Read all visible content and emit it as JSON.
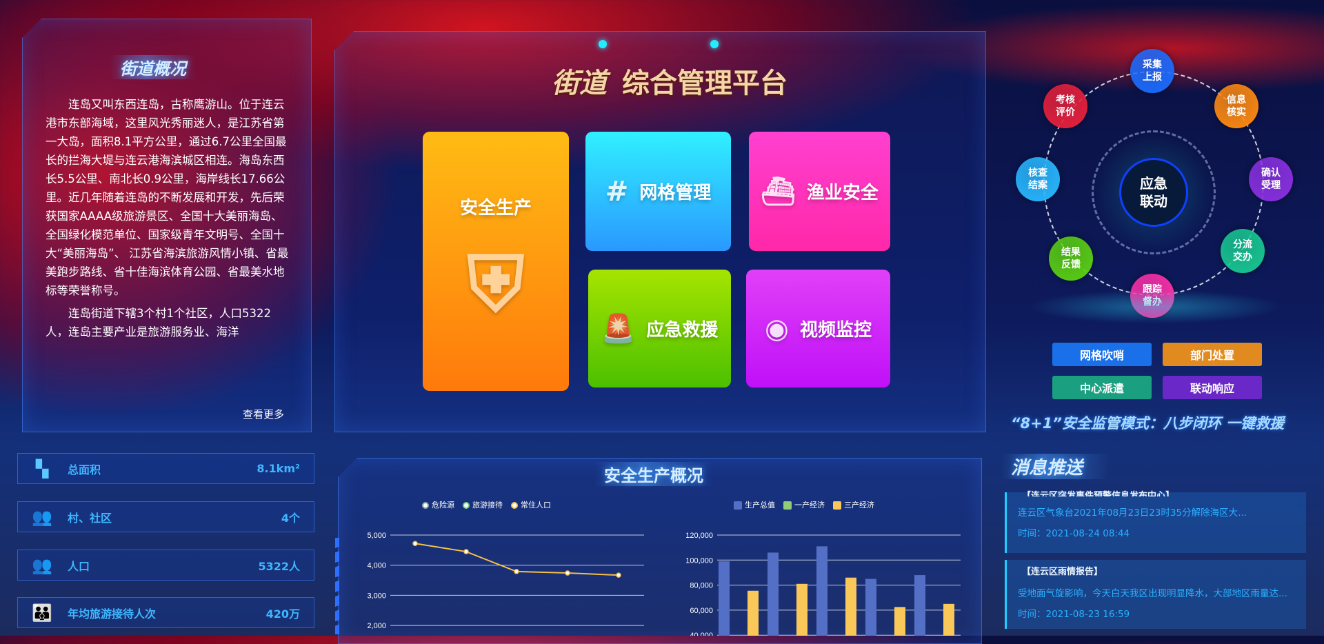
{
  "overview": {
    "title": "街道概况",
    "paragraphs": [
      "连岛又叫东西连岛，古称鹰游山。位于连云港市东部海域，这里风光秀丽迷人，是江苏省第一大岛，面积8.1平方公里，通过6.7公里全国最长的拦海大堤与连云港海滨城区相连。海岛东西长5.5公里、南北长0.9公里，海岸线长17.66公里。近几年随着连岛的不断发展和开发，先后荣获国家AAAA级旅游景区、全国十大美丽海岛、全国绿化模范单位、国家级青年文明号、全国十大“美丽海岛”、 江苏省海滨旅游风情小镇、省最美跑步路线、省十佳海滨体育公园、省最美水地标等荣誉称号。",
      "连岛街道下辖3个村1个社区，人口5322人，连岛主要产业是旅游服务业、海洋"
    ],
    "more": "查看更多"
  },
  "stats": [
    {
      "icon": "area-icon",
      "label": "总面积",
      "value": "8.1km²"
    },
    {
      "icon": "community-icon",
      "label": "村、社区",
      "value": "4个"
    },
    {
      "icon": "population-icon",
      "label": "人口",
      "value": "5322人"
    },
    {
      "icon": "tourists-icon",
      "label": "年均旅游接待人次",
      "value": "420万"
    }
  ],
  "header": {
    "title_prefix": "街道",
    "title": "综合管理平台"
  },
  "tiles": [
    {
      "label": "安全生产",
      "icon": "shield-gear-icon",
      "color": "#ff9a10"
    },
    {
      "label": "网格管理",
      "icon": "grid-icon",
      "color": "#2ab8ff"
    },
    {
      "label": "渔业安全",
      "icon": "fishing-boat-icon",
      "color": "#ff30c0"
    },
    {
      "label": "应急救援",
      "icon": "alarm-light-icon",
      "color": "#7ad400"
    },
    {
      "label": "视频监控",
      "icon": "camera-icon",
      "color": "#d020f8"
    }
  ],
  "cycle": {
    "center": "应急\n联动",
    "nodes": [
      {
        "label": "采集\n上报",
        "color": "#1a6cff"
      },
      {
        "label": "信息\n核实",
        "color": "#ff8a10"
      },
      {
        "label": "确认\n受理",
        "color": "#8a30e0"
      },
      {
        "label": "分流\n交办",
        "color": "#18c890"
      },
      {
        "label": "跟踪\n督办",
        "color": "#ff30a8"
      },
      {
        "label": "结果\n反馈",
        "color": "#5ad010"
      },
      {
        "label": "核查\n结案",
        "color": "#28b8ff"
      },
      {
        "label": "考核\n评价",
        "color": "#e8203a"
      }
    ]
  },
  "modes": [
    {
      "label": "网格吹哨",
      "color": "#1a70e8"
    },
    {
      "label": "部门处置",
      "color": "#e08a20"
    },
    {
      "label": "中心派遣",
      "color": "#1aa080"
    },
    {
      "label": "联动响应",
      "color": "#6a28c8"
    }
  ],
  "slogan": "“8+1”安全监管模式：八步闭环 一键救援",
  "safety": {
    "title": "安全生产概况"
  },
  "chart_data": [
    {
      "type": "line",
      "legend": [
        "危险源",
        "旅游接待",
        "常住人口"
      ],
      "legend_colors": [
        "#ffffff",
        "#7ad07a",
        "#f5c04a"
      ],
      "ylim": [
        2000,
        5000
      ],
      "yticks": [
        "5,000",
        "4,000",
        "3,000",
        "2,000"
      ],
      "series": [
        {
          "name": "常住人口",
          "values": [
            4720,
            4450,
            3790,
            3740,
            3670
          ]
        }
      ],
      "color": "#f5c04a"
    },
    {
      "type": "bar",
      "legend": [
        "生产总值",
        "一产经济",
        "三产经济"
      ],
      "legend_colors": [
        "#5470c6",
        "#91cc75",
        "#fac858"
      ],
      "ylim": [
        40000,
        120000
      ],
      "yticks": [
        "120,000",
        "100,000",
        "80,000",
        "60,000",
        "40,000"
      ],
      "series": [
        {
          "name": "生产总值",
          "values": [
            99000,
            106000,
            111000,
            85000,
            88000
          ]
        },
        {
          "name": "三产经济",
          "values": [
            75500,
            81000,
            86000,
            62500,
            65000
          ]
        }
      ]
    }
  ],
  "messages": {
    "title": "消息推送",
    "items": [
      {
        "title": "【连云区突发事件预警信息发布中心】",
        "body": "连云区气象台2021年08月23日23时35分解除海区大...",
        "time": "时间：2021-08-24 08:44"
      },
      {
        "title": "【连云区雨情报告】",
        "body": "受地面气旋影响，今天白天我区出现明显降水，大部地区雨量达...",
        "time": "时间：2021-08-23 16:59"
      }
    ]
  }
}
